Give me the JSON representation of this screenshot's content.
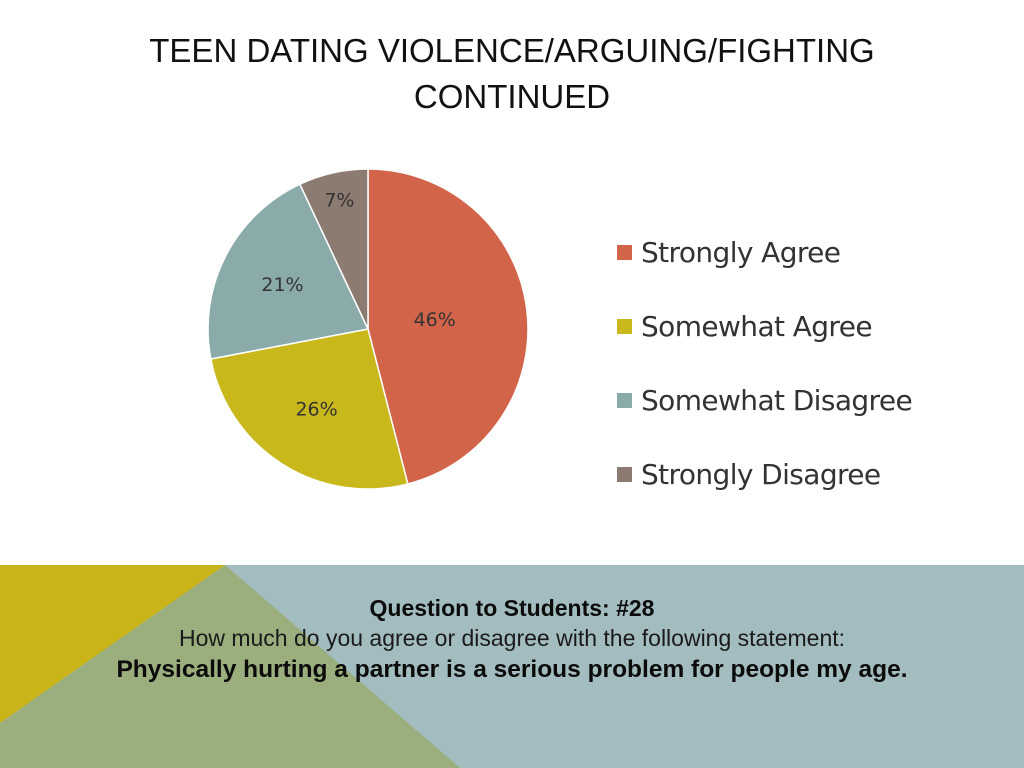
{
  "slide": {
    "title_line1": "TEEN DATING VIOLENCE/ARGUING/FIGHTING",
    "title_line2": "CONTINUED"
  },
  "chart_data": {
    "type": "pie",
    "title": "",
    "categories": [
      "Strongly Agree",
      "Somewhat Agree",
      "Somewhat Disagree",
      "Strongly Disagree"
    ],
    "values": [
      46,
      26,
      21,
      7
    ],
    "labels": [
      "46%",
      "26%",
      "21%",
      "7%"
    ],
    "colors": [
      "#d2644a",
      "#c9b81c",
      "#8aabaa",
      "#8c7b70"
    ],
    "legend": "right"
  },
  "question": {
    "heading": "Question to Students: #28",
    "body": "How much do you agree or disagree with the following statement:",
    "statement": "Physically hurting a partner is a serious problem for people my age."
  },
  "band_colors": {
    "teal": "#a3bcbf",
    "olive": "#9aae7e",
    "gold": "#c9b519"
  }
}
